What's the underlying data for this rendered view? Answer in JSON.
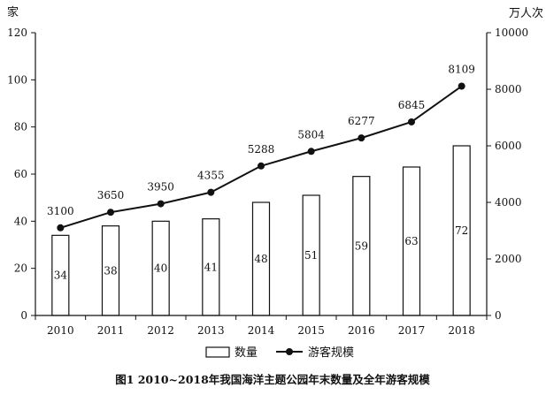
{
  "chart_data": {
    "type": "bar",
    "title": "图1 2010~2018年我国海洋主题公园年末数量及全年游客规模",
    "categories": [
      "2010",
      "2011",
      "2012",
      "2013",
      "2014",
      "2015",
      "2016",
      "2017",
      "2018"
    ],
    "left_axis": {
      "unit": "家",
      "ylim": [
        0,
        120
      ],
      "ticks": [
        0,
        20,
        40,
        60,
        80,
        100,
        120
      ]
    },
    "right_axis": {
      "unit": "万人次",
      "ylim": [
        0,
        10000
      ],
      "ticks": [
        0,
        2000,
        4000,
        6000,
        8000,
        10000
      ]
    },
    "series": [
      {
        "name": "数量",
        "type": "bar",
        "axis": "left",
        "values": [
          34,
          38,
          40,
          41,
          48,
          51,
          59,
          63,
          72
        ]
      },
      {
        "name": "游客规模",
        "type": "line",
        "axis": "right",
        "values": [
          3100,
          3650,
          3950,
          4355,
          5288,
          5804,
          6277,
          6845,
          8109
        ]
      }
    ],
    "legend": {
      "position": "bottom",
      "entries": [
        "数量",
        "游客规模"
      ]
    },
    "grid": false
  },
  "colors": {
    "ink": "#111111",
    "bar_fill": "#ffffff",
    "marker": "#111111"
  }
}
